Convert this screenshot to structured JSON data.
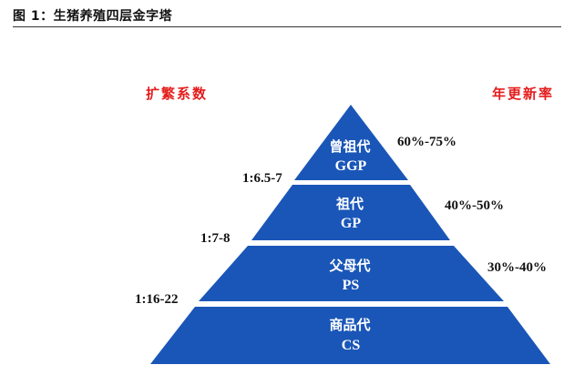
{
  "figure": {
    "title": "图 1：生猪养殖四层金字塔"
  },
  "headers": {
    "left": "扩繁系数",
    "right": "年更新率"
  },
  "colors": {
    "pyramid": "#1a56b8",
    "header": "#e51c1c",
    "label": "#ffffff"
  },
  "tiers": [
    {
      "name": "曾祖代",
      "code": "GGP",
      "renewal": "60%-75%"
    },
    {
      "name": "祖代",
      "code": "GP",
      "renewal": "40%-50%"
    },
    {
      "name": "父母代",
      "code": "PS",
      "renewal": "30%-40%"
    },
    {
      "name": "商品代",
      "code": "CS",
      "renewal": ""
    }
  ],
  "ratios": [
    "1:6.5-7",
    "1:7-8",
    "1:16-22"
  ]
}
